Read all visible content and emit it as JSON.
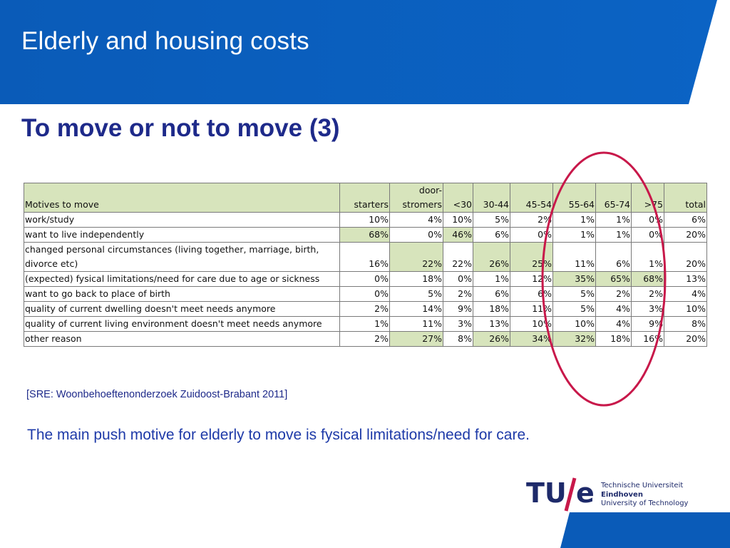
{
  "slide": {
    "title": "Elderly and housing costs",
    "subtitle": "To move or not to move (3)"
  },
  "colors": {
    "header_blue": "#0a5bb8",
    "title_navy": "#1e2a8a",
    "highlight_green": "#d7e4bc",
    "oval_red": "#c8184a"
  },
  "table": {
    "headers": [
      "Motives to move",
      "starters",
      "door-stromers",
      "<30",
      "30-44",
      "45-54",
      "55-64",
      "65-74",
      ">75",
      "total"
    ],
    "header_door_line1": "door-",
    "header_door_line2": "stromers",
    "rows": [
      {
        "label": "work/study",
        "cells": [
          "10%",
          "4%",
          "10%",
          "5%",
          "2%",
          "1%",
          "1%",
          "0%",
          "6%"
        ]
      },
      {
        "label": "want to live independently",
        "cells": [
          "68%",
          "0%",
          "46%",
          "6%",
          "0%",
          "1%",
          "1%",
          "0%",
          "20%"
        ]
      },
      {
        "label": "changed personal circumstances (living together, marriage, birth, divorce etc)",
        "cells": [
          "16%",
          "22%",
          "22%",
          "26%",
          "25%",
          "11%",
          "6%",
          "1%",
          "20%"
        ]
      },
      {
        "label": "(expected) fysical limitations/need for care due to age or sickness",
        "cells": [
          "0%",
          "18%",
          "0%",
          "1%",
          "12%",
          "35%",
          "65%",
          "68%",
          "13%"
        ]
      },
      {
        "label": "want to go back to place of birth",
        "cells": [
          "0%",
          "5%",
          "2%",
          "6%",
          "6%",
          "5%",
          "2%",
          "2%",
          "4%"
        ]
      },
      {
        "label": "quality of current dwelling doesn't meet needs anymore",
        "cells": [
          "2%",
          "14%",
          "9%",
          "18%",
          "11%",
          "5%",
          "4%",
          "3%",
          "10%"
        ]
      },
      {
        "label": "quality of current living environment doesn't meet needs anymore",
        "cells": [
          "1%",
          "11%",
          "3%",
          "13%",
          "10%",
          "10%",
          "4%",
          "9%",
          "8%"
        ]
      },
      {
        "label": "other reason",
        "cells": [
          "2%",
          "27%",
          "8%",
          "26%",
          "34%",
          "32%",
          "18%",
          "16%",
          "20%"
        ]
      }
    ]
  },
  "source": "[SRE: Woonbehoeftenonderzoek Zuidoost-Brabant 2011]",
  "conclusion": "The main push motive for elderly to move is fysical limitations/need for care.",
  "logo": {
    "mark_tu": "TU",
    "mark_e": "e",
    "line1": "Technische Universiteit",
    "line2": "Eindhoven",
    "line3": "University of Technology"
  }
}
